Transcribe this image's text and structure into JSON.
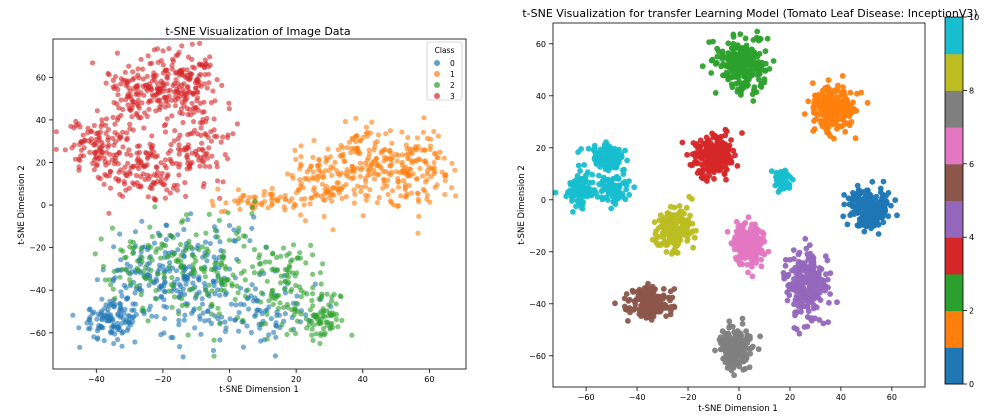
{
  "chart_data": [
    {
      "type": "scatter",
      "title": "t-SNE Visualization of Image Data",
      "xlabel": "t-SNE Dimension 1",
      "ylabel": "t-SNE Dimension 2",
      "xlim": [
        -53,
        71
      ],
      "ylim": [
        -77,
        78
      ],
      "xticks": [
        -40,
        -20,
        0,
        20,
        40,
        60
      ],
      "yticks": [
        -60,
        -40,
        -20,
        0,
        20,
        40,
        60
      ],
      "grid": false,
      "legend": {
        "title": "Class",
        "position": "top-right"
      },
      "series": [
        {
          "name": "0",
          "color": "#1f77b4",
          "clusters": [
            {
              "cx": -35,
              "cy": -53,
              "sx": 5,
              "sy": 5,
              "n": 110
            },
            {
              "cx": -22,
              "cy": -35,
              "sx": 8,
              "sy": 10,
              "n": 150
            },
            {
              "cx": -5,
              "cy": -35,
              "sx": 10,
              "sy": 14,
              "n": 110
            },
            {
              "cx": 10,
              "cy": -50,
              "sx": 8,
              "sy": 8,
              "n": 70
            }
          ]
        },
        {
          "name": "1",
          "color": "#ff7f0e",
          "clusters": [
            {
              "cx": 10,
              "cy": 2,
              "sx": 7,
              "sy": 3,
              "n": 60
            },
            {
              "cx": 28,
              "cy": 12,
              "sx": 6,
              "sy": 8,
              "n": 100
            },
            {
              "cx": 40,
              "cy": 22,
              "sx": 5,
              "sy": 9,
              "n": 100
            },
            {
              "cx": 55,
              "cy": 17,
              "sx": 6,
              "sy": 9,
              "n": 160
            }
          ]
        },
        {
          "name": "2",
          "color": "#2ca02c",
          "clusters": [
            {
              "cx": -22,
              "cy": -28,
              "sx": 8,
              "sy": 11,
              "n": 90
            },
            {
              "cx": -2,
              "cy": -32,
              "sx": 9,
              "sy": 13,
              "n": 110
            },
            {
              "cx": 18,
              "cy": -38,
              "sx": 6,
              "sy": 11,
              "n": 90
            },
            {
              "cx": 27,
              "cy": -52,
              "sx": 4,
              "sy": 6,
              "n": 70
            }
          ]
        },
        {
          "name": "3",
          "color": "#d62728",
          "clusters": [
            {
              "cx": -25,
              "cy": 55,
              "sx": 6,
              "sy": 7,
              "n": 150
            },
            {
              "cx": -12,
              "cy": 58,
              "sx": 5,
              "sy": 9,
              "n": 120
            },
            {
              "cx": -38,
              "cy": 28,
              "sx": 6,
              "sy": 7,
              "n": 130
            },
            {
              "cx": -25,
              "cy": 15,
              "sx": 6,
              "sy": 7,
              "n": 110
            },
            {
              "cx": -10,
              "cy": 30,
              "sx": 5,
              "sy": 10,
              "n": 100
            }
          ]
        }
      ]
    },
    {
      "type": "scatter",
      "title": "t-SNE Visualization for transfer Learning Model (Tomato Leaf Disease: InceptionV3)",
      "xlabel": "t-SNE Dimension 1",
      "ylabel": "t-SNE Dimension 2",
      "xlim": [
        -73,
        73
      ],
      "ylim": [
        -72,
        68
      ],
      "xticks": [
        -60,
        -40,
        -20,
        0,
        20,
        40,
        60
      ],
      "yticks": [
        -60,
        -40,
        -20,
        0,
        20,
        40,
        60
      ],
      "grid": false,
      "colorbar": {
        "position": "right",
        "min": 0,
        "max": 10,
        "ticks": [
          0,
          2,
          4,
          6,
          8,
          10
        ]
      },
      "series": [
        {
          "name": "0",
          "color": "#1f77b4",
          "clusters": [
            {
              "cx": 51,
              "cy": -3,
              "sx": 4,
              "sy": 4,
              "n": 240
            }
          ]
        },
        {
          "name": "1",
          "color": "#ff7f0e",
          "clusters": [
            {
              "cx": 37,
              "cy": 35,
              "sx": 4,
              "sy": 4,
              "n": 240
            }
          ]
        },
        {
          "name": "2",
          "color": "#2ca02c",
          "clusters": [
            {
              "cx": 1,
              "cy": 52,
              "sx": 4.5,
              "sy": 5,
              "n": 260
            }
          ]
        },
        {
          "name": "3",
          "color": "#d62728",
          "clusters": [
            {
              "cx": -10,
              "cy": 17,
              "sx": 4,
              "sy": 4,
              "n": 240
            }
          ]
        },
        {
          "name": "4",
          "color": "#9467bd",
          "clusters": [
            {
              "cx": 27,
              "cy": -33,
              "sx": 4,
              "sy": 6,
              "n": 240
            }
          ]
        },
        {
          "name": "5",
          "color": "#8c564b",
          "clusters": [
            {
              "cx": -35,
              "cy": -40,
              "sx": 4,
              "sy": 3,
              "n": 200
            }
          ]
        },
        {
          "name": "6",
          "color": "#e377c2",
          "clusters": [
            {
              "cx": 4,
              "cy": -17,
              "sx": 3,
              "sy": 4,
              "n": 200
            }
          ]
        },
        {
          "name": "7",
          "color": "#7f7f7f",
          "clusters": [
            {
              "cx": -2,
              "cy": -57,
              "sx": 3,
              "sy": 4,
              "n": 200
            }
          ]
        },
        {
          "name": "8",
          "color": "#bcbd22",
          "clusters": [
            {
              "cx": -26,
              "cy": -11,
              "sx": 3.5,
              "sy": 4,
              "n": 200
            }
          ]
        },
        {
          "name": "9",
          "color": "#17becf",
          "clusters": [
            {
              "cx": -52,
              "cy": 17,
              "sx": 3,
              "sy": 3,
              "n": 120
            },
            {
              "cx": -62,
              "cy": 4,
              "sx": 3,
              "sy": 3,
              "n": 100
            },
            {
              "cx": -49,
              "cy": 4,
              "sx": 2.5,
              "sy": 3,
              "n": 80
            },
            {
              "cx": 17,
              "cy": 8,
              "sx": 1.8,
              "sy": 2,
              "n": 60
            }
          ]
        }
      ]
    }
  ]
}
